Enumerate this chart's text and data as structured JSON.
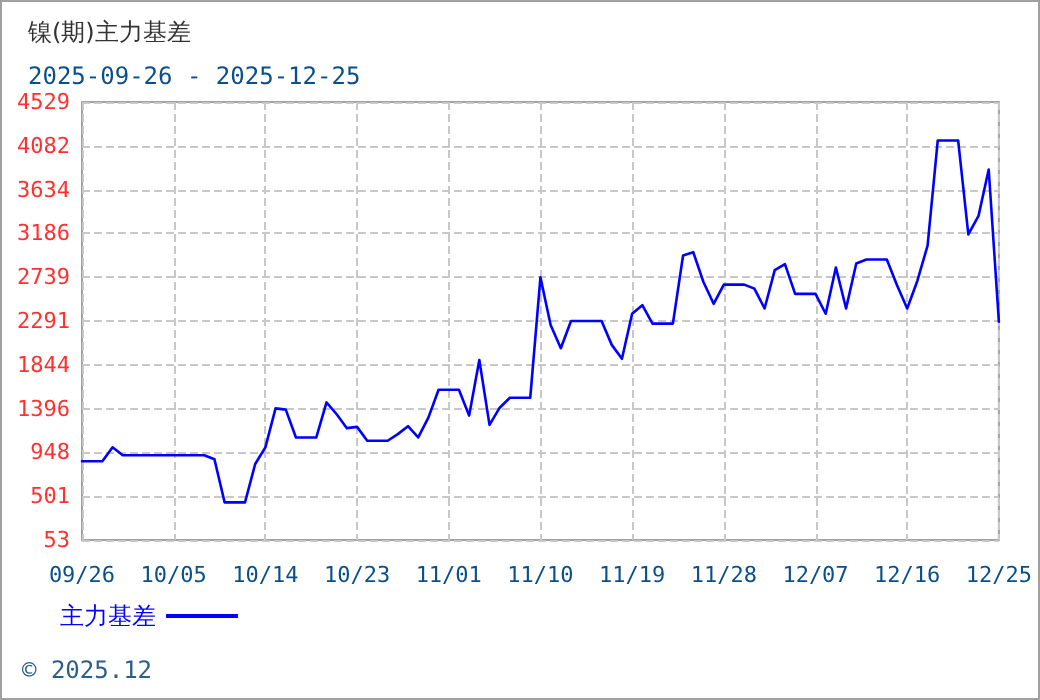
{
  "chart_data": {
    "type": "line",
    "title": "镍(期)主力基差",
    "subtitle": "2025-09-26 - 2025-12-25",
    "annotations": [
      "© 2025.12"
    ],
    "x": [
      "--09-26",
      "--09-28",
      "--09-29",
      "--09-30",
      "--10-08",
      "--10-09",
      "--10-10",
      "--10-12",
      "--10-13",
      "--10-14",
      "--10-15",
      "--10-16",
      "--10-17",
      "--10-19",
      "--10-20",
      "--10-21",
      "--10-22",
      "--10-23",
      "--10-24",
      "--10-26",
      "--10-27",
      "--10-28",
      "--10-29",
      "--10-30",
      "--10-31",
      "--11-02",
      "--11-03",
      "--11-04",
      "--11-05",
      "--11-06",
      "--11-07",
      "--11-09",
      "--11-10",
      "--11-11",
      "--11-12",
      "--11-13",
      "--11-16",
      "--11-17",
      "--11-18",
      "--11-19",
      "--11-20",
      "--11-21",
      "--11-23",
      "--11-24",
      "--11-25",
      "--11-26",
      "--11-27",
      "--11-28",
      "--11-30",
      "--12-01",
      "--12-02",
      "--12-03",
      "--12-04",
      "--12-05",
      "--12-07",
      "--12-08",
      "--12-09",
      "--12-10",
      "--12-11",
      "--12-12",
      "--12-14",
      "--12-15",
      "--12-16",
      "--12-17",
      "--12-18",
      "--12-19",
      "--12-21",
      "--12-22",
      "--12-23",
      "--12-24",
      "--12-25"
    ],
    "series": [
      {
        "name": "主力基差",
        "color": "#0000ff",
        "values": [
          858,
          858,
          1000,
          919,
          919,
          878,
          438,
          438,
          830,
          1000,
          1398,
          1385,
          1101,
          1101,
          1459,
          1338,
          1196,
          1209,
          1067,
          1067,
          1135,
          1216,
          1101,
          1304,
          1588,
          1588,
          1324,
          1892,
          1229,
          1405,
          1507,
          1507,
          2737,
          2250,
          2013,
          2291,
          2291,
          2047,
          1905,
          2365,
          2453,
          2264,
          2264,
          2960,
          2994,
          2690,
          2467,
          2663,
          2663,
          2622,
          2419,
          2811,
          2872,
          2568,
          2568,
          2365,
          2838,
          2419,
          2879,
          2920,
          2920,
          2656,
          2419,
          2703,
          3061,
          4136,
          4136,
          3176,
          3365,
          3839,
          2284
        ]
      }
    ],
    "xlim": [
      "--09-26",
      "--12-25"
    ],
    "xticks": [
      {
        "value": "--09-26",
        "label": "09/26"
      },
      {
        "value": "--10-05",
        "label": "10/05"
      },
      {
        "value": "--10-14",
        "label": "10/14"
      },
      {
        "value": "--10-23",
        "label": "10/23"
      },
      {
        "value": "--11-01",
        "label": "11/01"
      },
      {
        "value": "--11-10",
        "label": "11/10"
      },
      {
        "value": "--11-19",
        "label": "11/19"
      },
      {
        "value": "--11-28",
        "label": "11/28"
      },
      {
        "value": "--12-07",
        "label": "12/07"
      },
      {
        "value": "--12-16",
        "label": "12/16"
      },
      {
        "value": "--12-25",
        "label": "12/25"
      }
    ],
    "ylim": [
      53,
      4529
    ],
    "yticks": [
      53,
      501,
      948,
      1396,
      1844,
      2291,
      2739,
      3186,
      3634,
      4082,
      4529
    ],
    "grid": true,
    "legend": "bottom left",
    "marker": "none",
    "line_style": "solid"
  }
}
